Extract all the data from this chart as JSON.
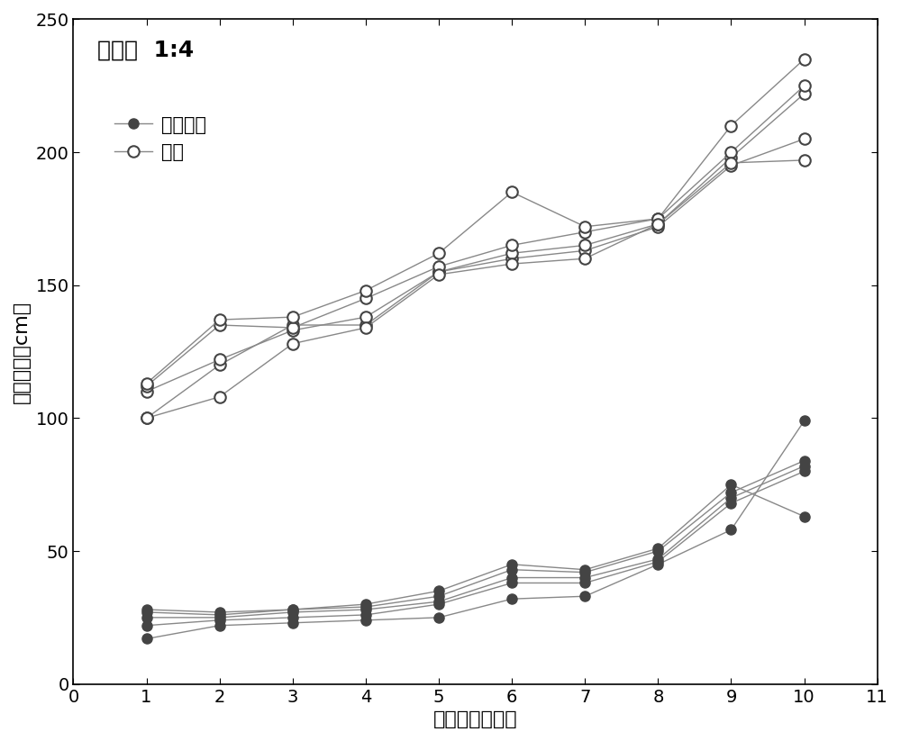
{
  "title_text": "坡度：  1:4",
  "xlabel": "样品数量（个）",
  "ylabel": "滚动距离（cm）",
  "xlim": [
    0,
    11
  ],
  "ylim": [
    0,
    250
  ],
  "xticks": [
    0,
    1,
    2,
    3,
    4,
    5,
    6,
    7,
    8,
    9,
    10,
    11
  ],
  "yticks": [
    0,
    50,
    100,
    150,
    200,
    250
  ],
  "legend_filled_label": "两球一线",
  "legend_open_label": "单球",
  "line_color": "#888888",
  "filled_series": [
    [
      17,
      22,
      23,
      24,
      25,
      32,
      33,
      45,
      58,
      99
    ],
    [
      22,
      24,
      25,
      26,
      30,
      38,
      38,
      46,
      68,
      80
    ],
    [
      25,
      25,
      27,
      28,
      31,
      40,
      40,
      47,
      70,
      82
    ],
    [
      27,
      26,
      28,
      29,
      33,
      43,
      42,
      50,
      72,
      84
    ],
    [
      28,
      27,
      28,
      30,
      35,
      45,
      43,
      51,
      75,
      63
    ]
  ],
  "open_series": [
    [
      100,
      120,
      135,
      135,
      155,
      160,
      163,
      172,
      195,
      205
    ],
    [
      110,
      122,
      133,
      138,
      155,
      162,
      165,
      173,
      198,
      222
    ],
    [
      112,
      135,
      134,
      145,
      157,
      165,
      170,
      175,
      200,
      225
    ],
    [
      113,
      137,
      138,
      148,
      162,
      185,
      172,
      175,
      210,
      235
    ],
    [
      100,
      108,
      128,
      134,
      154,
      158,
      160,
      173,
      196,
      197
    ]
  ]
}
